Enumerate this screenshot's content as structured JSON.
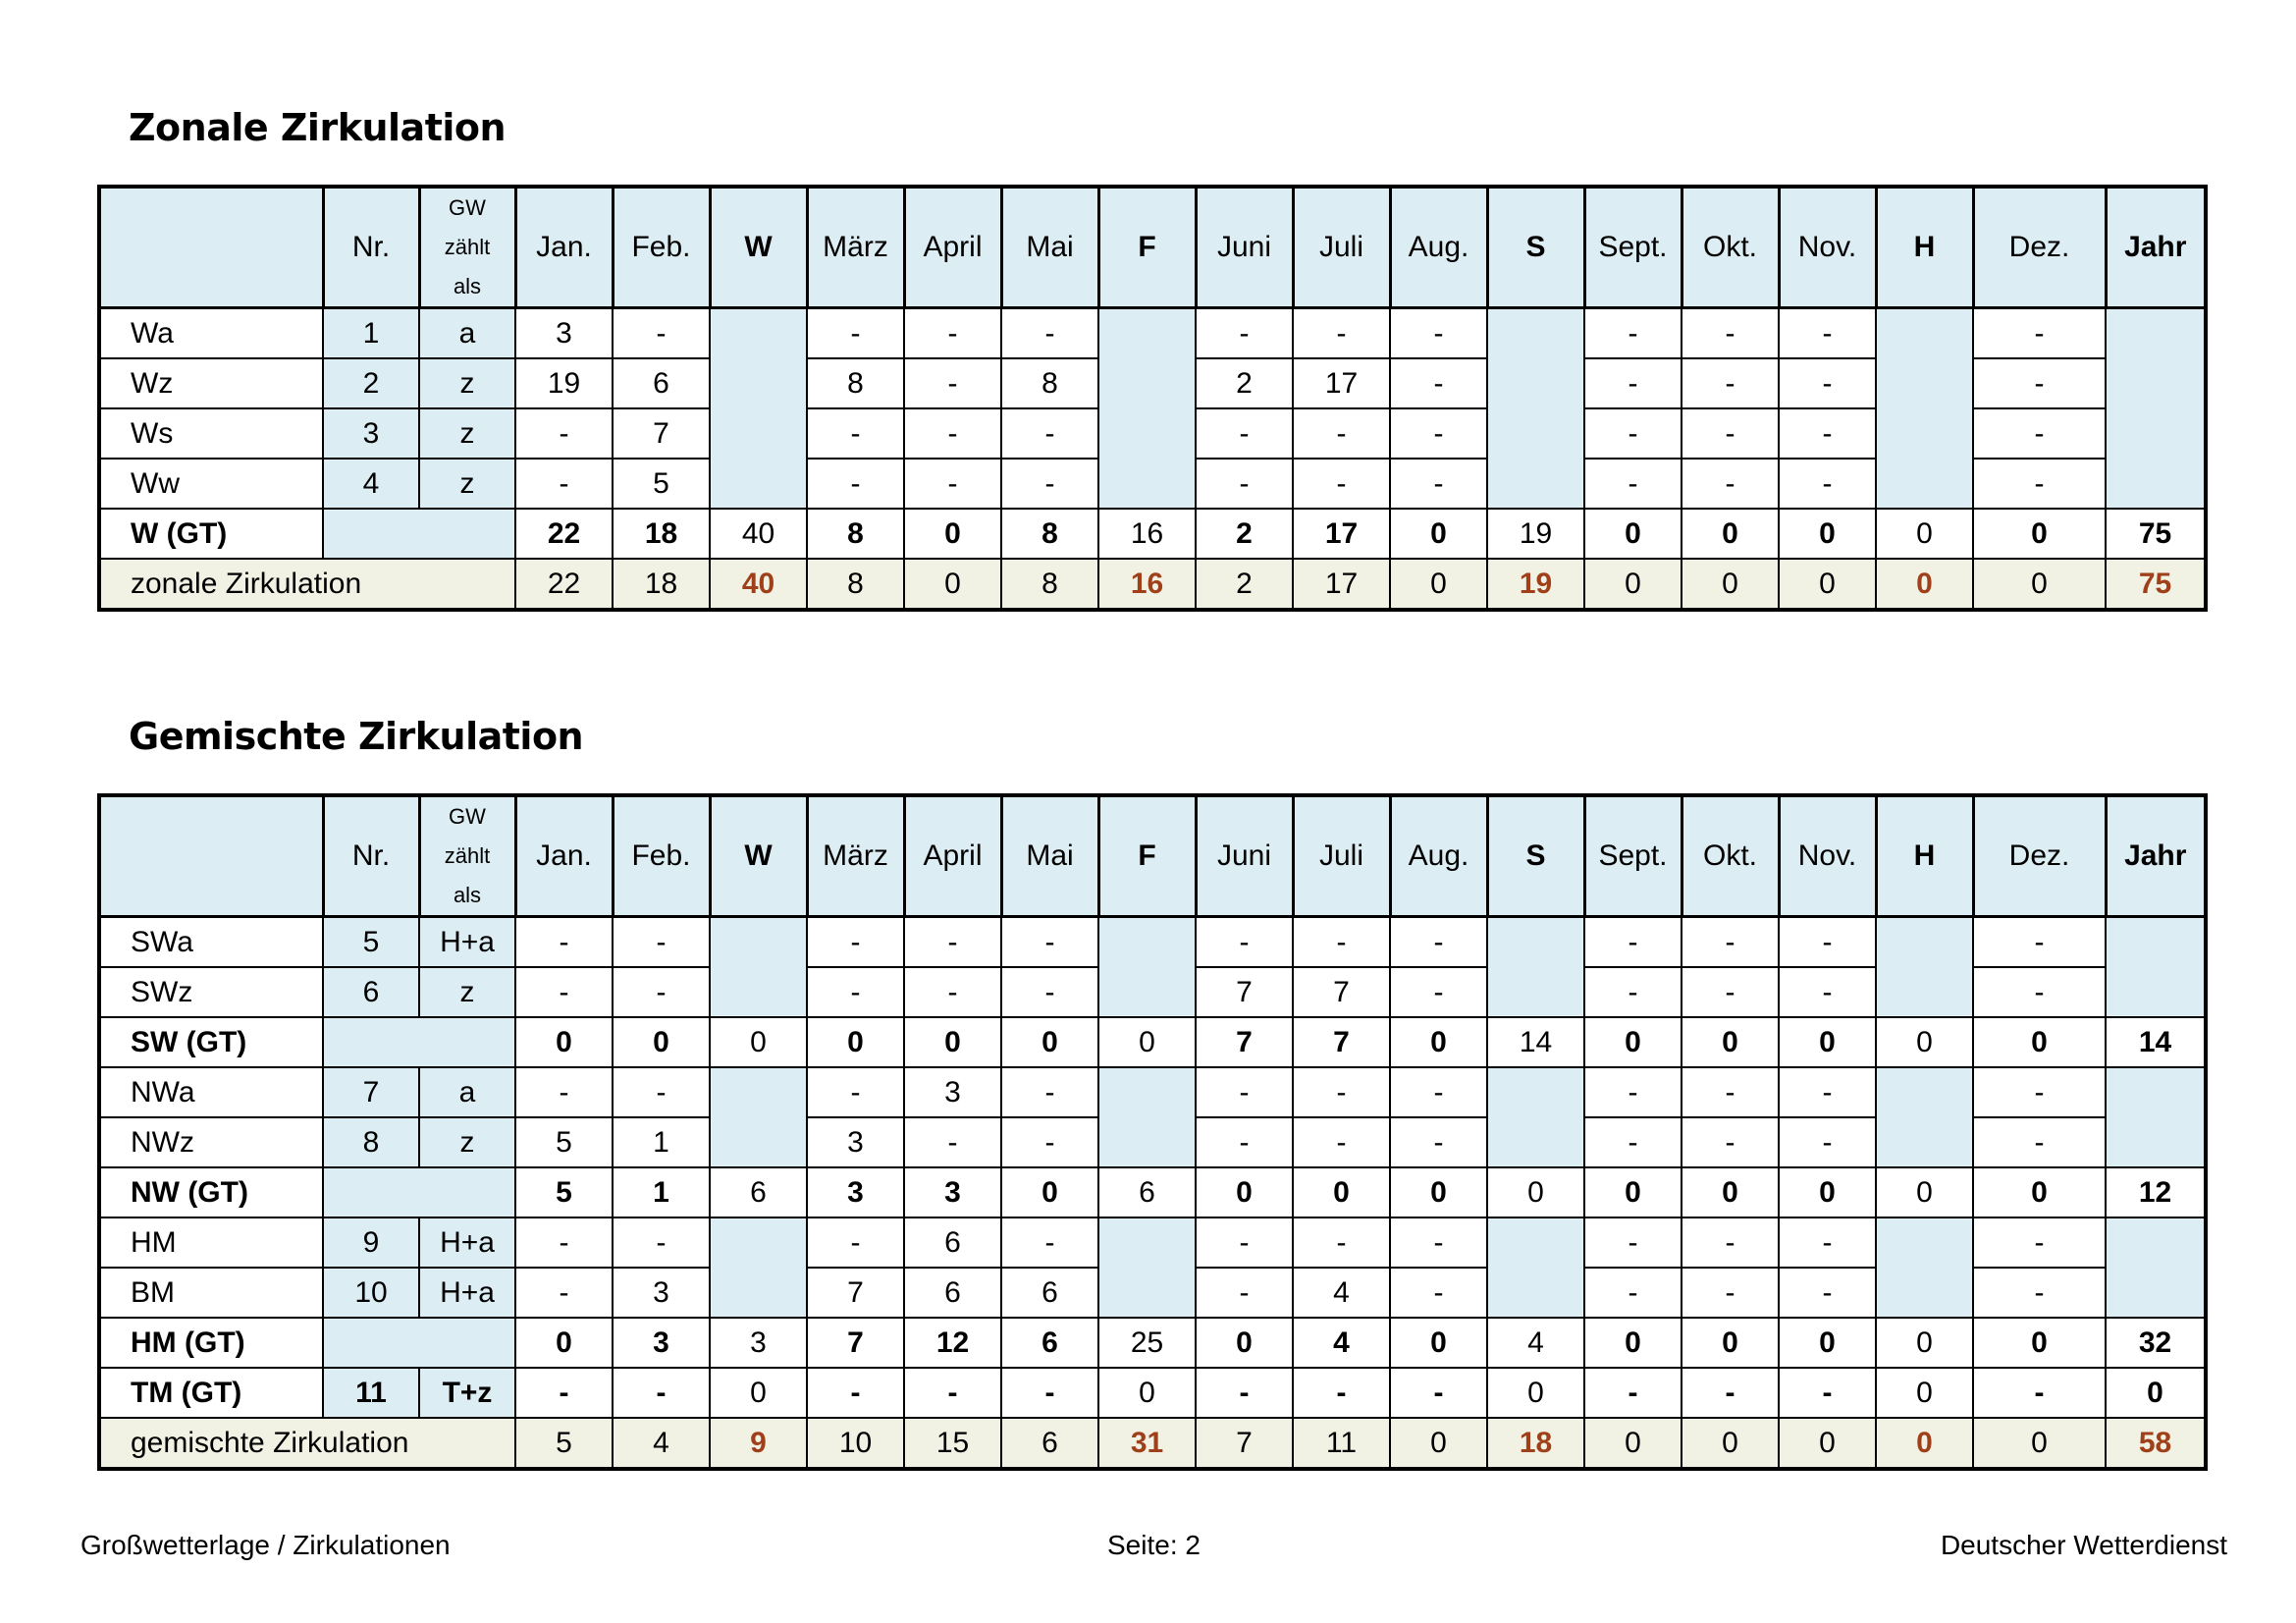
{
  "sections": [
    {
      "title": "Zonale Zirkulation",
      "header": {
        "nr": "Nr.",
        "gw_lines": [
          "GW",
          "zählt",
          "als"
        ],
        "months": [
          "Jan.",
          "Feb.",
          "W",
          "März",
          "April",
          "Mai",
          "F",
          "Juni",
          "Juli",
          "Aug.",
          "S",
          "Sept.",
          "Okt.",
          "Nov.",
          "H",
          "Dez.",
          "Jahr"
        ]
      },
      "rows": [
        {
          "type": "detail",
          "name": "Wa",
          "nr": "1",
          "gw": "a",
          "vals": [
            "3",
            "-",
            "",
            "-",
            "-",
            "-",
            "",
            "-",
            "-",
            "-",
            "",
            "-",
            "-",
            "-",
            "",
            "-",
            ""
          ]
        },
        {
          "type": "detail",
          "name": "Wz",
          "nr": "2",
          "gw": "z",
          "vals": [
            "19",
            "6",
            "",
            "8",
            "-",
            "8",
            "",
            "2",
            "17",
            "-",
            "",
            "-",
            "-",
            "-",
            "",
            "-",
            ""
          ]
        },
        {
          "type": "detail",
          "name": "Ws",
          "nr": "3",
          "gw": "z",
          "vals": [
            "-",
            "7",
            "",
            "-",
            "-",
            "-",
            "",
            "-",
            "-",
            "-",
            "",
            "-",
            "-",
            "-",
            "",
            "-",
            ""
          ]
        },
        {
          "type": "detail",
          "name": "Ww",
          "nr": "4",
          "gw": "z",
          "vals": [
            "-",
            "5",
            "",
            "-",
            "-",
            "-",
            "",
            "-",
            "-",
            "-",
            "",
            "-",
            "-",
            "-",
            "",
            "-",
            ""
          ]
        },
        {
          "type": "gt",
          "name": "W (GT)",
          "vals": [
            "22",
            "18",
            "40",
            "8",
            "0",
            "8",
            "16",
            "2",
            "17",
            "0",
            "19",
            "0",
            "0",
            "0",
            "0",
            "0",
            "75"
          ]
        },
        {
          "type": "sum",
          "name": "zonale Zirkulation",
          "vals": [
            "22",
            "18",
            "40",
            "8",
            "0",
            "8",
            "16",
            "2",
            "17",
            "0",
            "19",
            "0",
            "0",
            "0",
            "0",
            "0",
            "75"
          ]
        }
      ]
    },
    {
      "title": "Gemischte Zirkulation",
      "header": {
        "nr": "Nr.",
        "gw_lines": [
          "GW",
          "zählt",
          "als"
        ],
        "months": [
          "Jan.",
          "Feb.",
          "W",
          "März",
          "April",
          "Mai",
          "F",
          "Juni",
          "Juli",
          "Aug.",
          "S",
          "Sept.",
          "Okt.",
          "Nov.",
          "H",
          "Dez.",
          "Jahr"
        ]
      },
      "rows": [
        {
          "type": "detail",
          "name": "SWa",
          "nr": "5",
          "gw": "H+a",
          "vals": [
            "-",
            "-",
            "",
            "-",
            "-",
            "-",
            "",
            "-",
            "-",
            "-",
            "",
            "-",
            "-",
            "-",
            "",
            "-",
            ""
          ]
        },
        {
          "type": "detail",
          "name": "SWz",
          "nr": "6",
          "gw": "z",
          "vals": [
            "-",
            "-",
            "",
            "-",
            "-",
            "-",
            "",
            "7",
            "7",
            "-",
            "",
            "-",
            "-",
            "-",
            "",
            "-",
            ""
          ]
        },
        {
          "type": "gt",
          "name": "SW (GT)",
          "vals": [
            "0",
            "0",
            "0",
            "0",
            "0",
            "0",
            "0",
            "7",
            "7",
            "0",
            "14",
            "0",
            "0",
            "0",
            "0",
            "0",
            "14"
          ]
        },
        {
          "type": "detail",
          "name": "NWa",
          "nr": "7",
          "gw": "a",
          "vals": [
            "-",
            "-",
            "",
            "-",
            "3",
            "-",
            "",
            "-",
            "-",
            "-",
            "",
            "-",
            "-",
            "-",
            "",
            "-",
            ""
          ]
        },
        {
          "type": "detail",
          "name": "NWz",
          "nr": "8",
          "gw": "z",
          "vals": [
            "5",
            "1",
            "",
            "3",
            "-",
            "-",
            "",
            "-",
            "-",
            "-",
            "",
            "-",
            "-",
            "-",
            "",
            "-",
            ""
          ]
        },
        {
          "type": "gt",
          "name": "NW (GT)",
          "vals": [
            "5",
            "1",
            "6",
            "3",
            "3",
            "0",
            "6",
            "0",
            "0",
            "0",
            "0",
            "0",
            "0",
            "0",
            "0",
            "0",
            "12"
          ]
        },
        {
          "type": "detail",
          "name": "HM",
          "nr": "9",
          "gw": "H+a",
          "vals": [
            "-",
            "-",
            "",
            "-",
            "6",
            "-",
            "",
            "-",
            "-",
            "-",
            "",
            "-",
            "-",
            "-",
            "",
            "-",
            ""
          ]
        },
        {
          "type": "detail",
          "name": "BM",
          "nr": "10",
          "gw": "H+a",
          "vals": [
            "-",
            "3",
            "",
            "7",
            "6",
            "6",
            "",
            "-",
            "4",
            "-",
            "",
            "-",
            "-",
            "-",
            "",
            "-",
            ""
          ]
        },
        {
          "type": "gt",
          "name": "HM (GT)",
          "vals": [
            "0",
            "3",
            "3",
            "7",
            "12",
            "6",
            "25",
            "0",
            "4",
            "0",
            "4",
            "0",
            "0",
            "0",
            "0",
            "0",
            "32"
          ]
        },
        {
          "type": "gt",
          "name": "TM (GT)",
          "nr": "11",
          "gw": "T+z",
          "vals": [
            "-",
            "-",
            "0",
            "-",
            "-",
            "-",
            "0",
            "-",
            "-",
            "-",
            "0",
            "-",
            "-",
            "-",
            "0",
            "-",
            "0"
          ]
        },
        {
          "type": "sum",
          "name": "gemischte Zirkulation",
          "vals": [
            "5",
            "4",
            "9",
            "10",
            "15",
            "6",
            "31",
            "7",
            "11",
            "0",
            "18",
            "0",
            "0",
            "0",
            "0",
            "0",
            "58"
          ]
        }
      ]
    }
  ],
  "footer": {
    "left": "Großwetterlage / Zirkulationen",
    "center": "Seite: 2",
    "right": "Deutscher Wetterdienst"
  }
}
